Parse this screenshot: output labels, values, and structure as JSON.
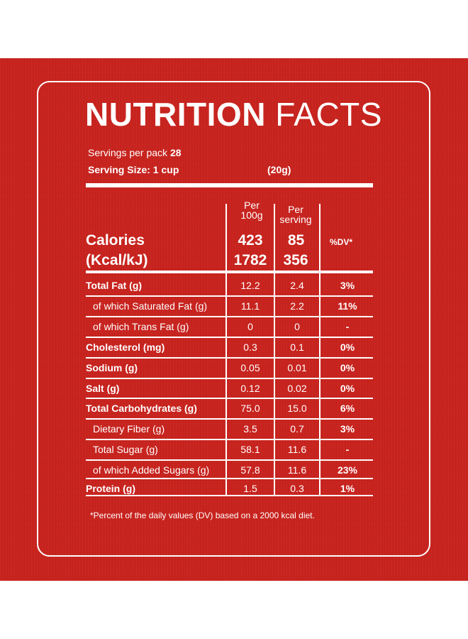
{
  "title": {
    "bold": "NUTRITION",
    "light": "FACTS"
  },
  "servings": {
    "label": "Servings per pack",
    "value": "28"
  },
  "serving_size": {
    "label": "Serving Size: 1 cup",
    "weight": "(20g)"
  },
  "columns": {
    "per100_line1": "Per",
    "per100_line2": "100g",
    "perserving_line1": "Per",
    "perserving_line2": "serving",
    "dv": "%DV*"
  },
  "calories": {
    "label1": "Calories",
    "label2": "(Kcal/kJ)",
    "kcal_100g": "423",
    "kcal_serving": "85",
    "kj_100g": "1782",
    "kj_serving": "356"
  },
  "rows": [
    {
      "label": "Total Fat (g)",
      "bold": true,
      "per100": "12.2",
      "serving": "2.4",
      "dv": "3%"
    },
    {
      "label": "of which Saturated Fat (g)",
      "bold": false,
      "per100": "11.1",
      "serving": "2.2",
      "dv": "11%"
    },
    {
      "label": "of which Trans Fat (g)",
      "bold": false,
      "per100": "0",
      "serving": "0",
      "dv": "-"
    },
    {
      "label": "Cholesterol (mg)",
      "bold": true,
      "per100": "0.3",
      "serving": "0.1",
      "dv": "0%"
    },
    {
      "label": "Sodium (g)",
      "bold": true,
      "per100": "0.05",
      "serving": "0.01",
      "dv": "0%"
    },
    {
      "label": "Salt (g)",
      "bold": true,
      "per100": "0.12",
      "serving": "0.02",
      "dv": "0%"
    },
    {
      "label": "Total Carbohydrates (g)",
      "bold": true,
      "per100": "75.0",
      "serving": "15.0",
      "dv": "6%"
    },
    {
      "label": "Dietary Fiber (g)",
      "bold": false,
      "per100": "3.5",
      "serving": "0.7",
      "dv": "3%"
    },
    {
      "label": "Total Sugar (g)",
      "bold": false,
      "per100": "58.1",
      "serving": "11.6",
      "dv": "-"
    },
    {
      "label": "of which Added Sugars (g)",
      "bold": false,
      "per100": "57.8",
      "serving": "11.6",
      "dv": "23%"
    },
    {
      "label": "Protein (g)",
      "bold": true,
      "per100": "1.5",
      "serving": "0.3",
      "dv": "1%"
    }
  ],
  "footnote": "*Percent of the daily values (DV) based on a 2000 kcal diet."
}
